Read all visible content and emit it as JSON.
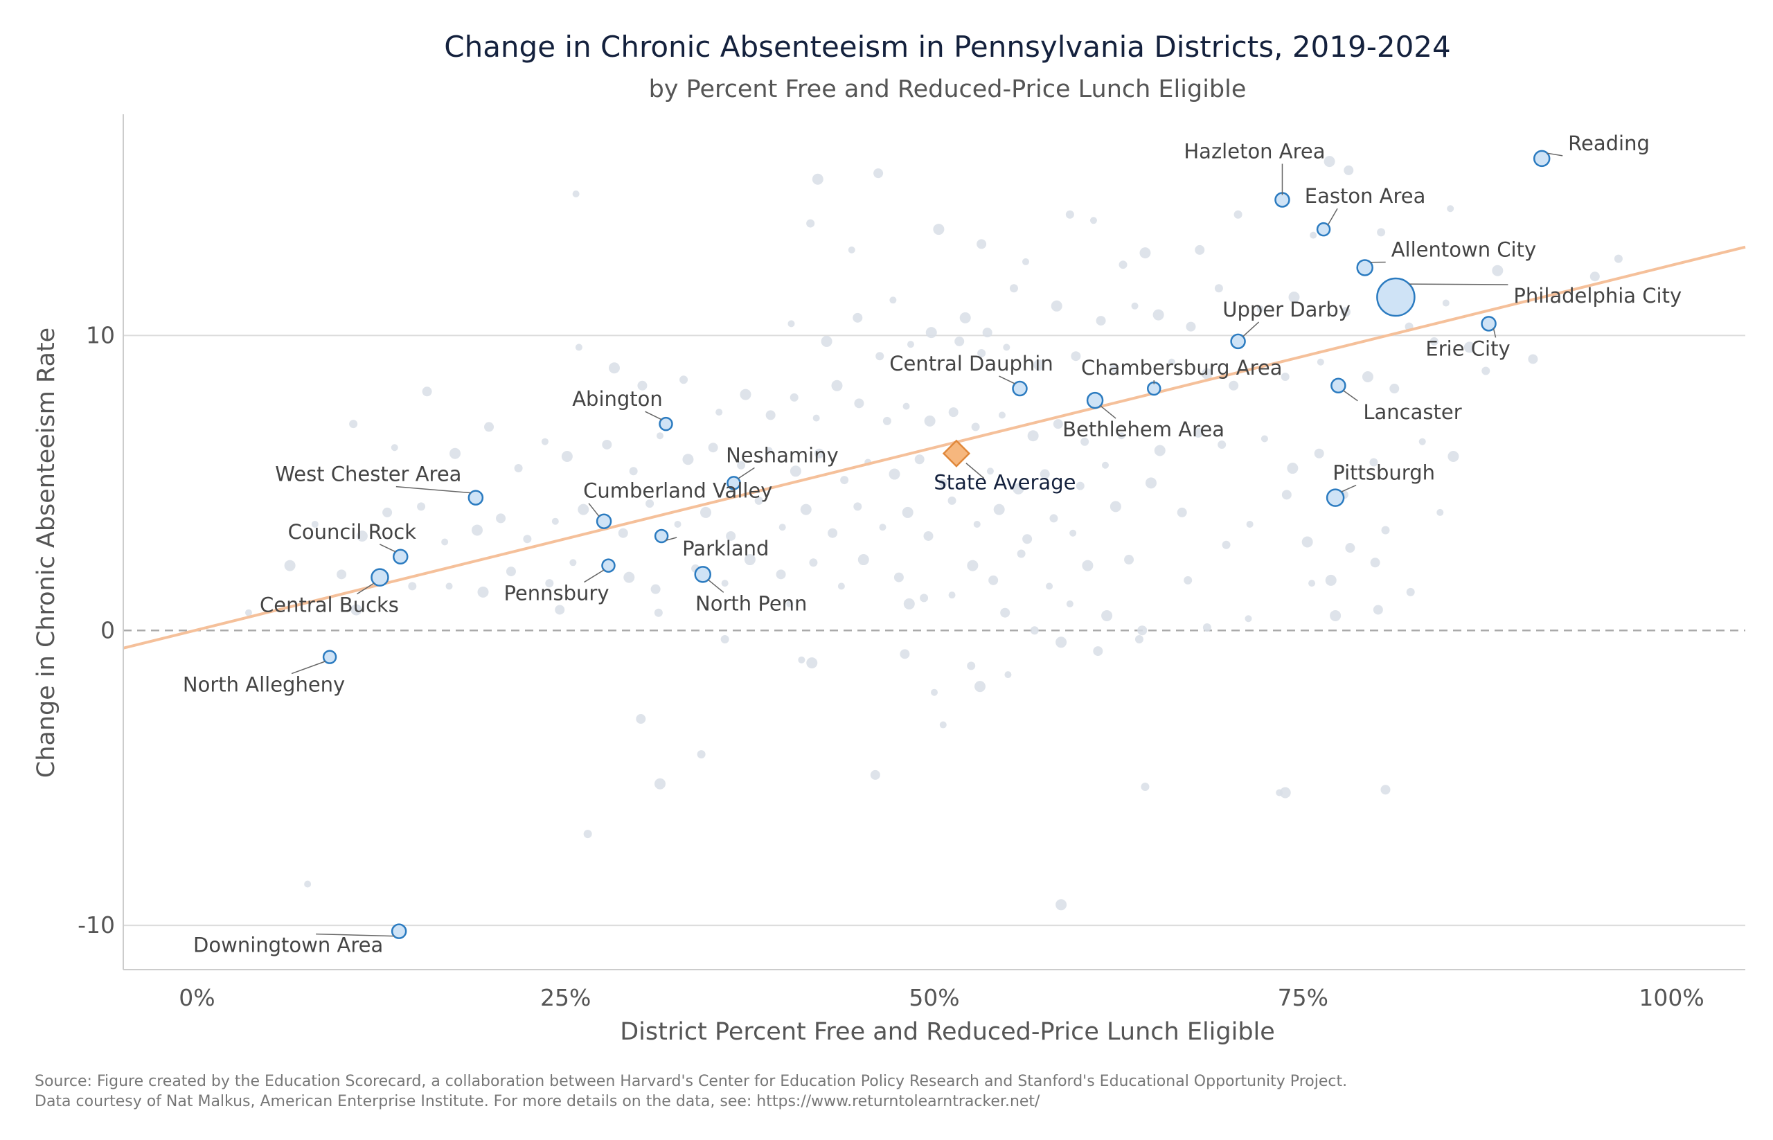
{
  "chart_data": {
    "type": "scatter",
    "title": "Change in Chronic Absenteeism in Pennsylvania Districts, 2019-2024",
    "subtitle": "by Percent Free and Reduced-Price Lunch Eligible",
    "xlabel": "District Percent Free and Reduced-Price Lunch Eligible",
    "ylabel": "Change in Chronic Absenteeism Rate",
    "xlim": [
      -5,
      105
    ],
    "ylim": [
      -11.5,
      17.5
    ],
    "x_ticks": [
      {
        "value": 0,
        "label": "0%"
      },
      {
        "value": 25,
        "label": "25%"
      },
      {
        "value": 50,
        "label": "50%"
      },
      {
        "value": 75,
        "label": "75%"
      },
      {
        "value": 100,
        "label": "100%"
      }
    ],
    "y_ticks": [
      {
        "value": -10,
        "label": "-10"
      },
      {
        "value": 0,
        "label": "0"
      },
      {
        "value": 10,
        "label": "10"
      }
    ],
    "grid": "horizontal",
    "reference_line_y": 0,
    "trend_line": {
      "x": [
        -5,
        105
      ],
      "y": [
        -0.6,
        13.0
      ],
      "color": "#f5c09a"
    },
    "colors": {
      "highlight_fill": "#cfe3f6",
      "highlight_stroke": "#2b7bc0",
      "background_point": "#d8dee6",
      "state_fill": "#f6b77e",
      "state_stroke": "#e0883b",
      "trend": "#f5c09a",
      "grid": "#dcdcdc",
      "zero_line": "#aaaaaa"
    },
    "highlighted": [
      {
        "name": "Reading",
        "x": 91.2,
        "y": 16.0,
        "size": 11
      },
      {
        "name": "Hazleton Area",
        "x": 73.6,
        "y": 14.6,
        "size": 10
      },
      {
        "name": "Easton Area",
        "x": 76.4,
        "y": 13.6,
        "size": 9
      },
      {
        "name": "Allentown City",
        "x": 79.2,
        "y": 12.3,
        "size": 11
      },
      {
        "name": "Philadelphia City",
        "x": 81.3,
        "y": 11.3,
        "size": 27
      },
      {
        "name": "Upper Darby",
        "x": 70.6,
        "y": 9.8,
        "size": 10
      },
      {
        "name": "Erie City",
        "x": 87.6,
        "y": 10.4,
        "size": 10
      },
      {
        "name": "Chambersburg Area",
        "x": 64.9,
        "y": 8.2,
        "size": 9
      },
      {
        "name": "Central Dauphin",
        "x": 55.8,
        "y": 8.2,
        "size": 10
      },
      {
        "name": "Bethlehem Area",
        "x": 60.9,
        "y": 7.8,
        "size": 11
      },
      {
        "name": "Lancaster",
        "x": 77.4,
        "y": 8.3,
        "size": 10
      },
      {
        "name": "Abington",
        "x": 31.8,
        "y": 7.0,
        "size": 9
      },
      {
        "name": "Neshaminy",
        "x": 36.4,
        "y": 5.0,
        "size": 9
      },
      {
        "name": "Pittsburgh",
        "x": 77.2,
        "y": 4.5,
        "size": 12
      },
      {
        "name": "West Chester Area",
        "x": 18.9,
        "y": 4.5,
        "size": 10
      },
      {
        "name": "Cumberland Valley",
        "x": 27.6,
        "y": 3.7,
        "size": 10
      },
      {
        "name": "Parkland",
        "x": 31.5,
        "y": 3.2,
        "size": 9
      },
      {
        "name": "Council Rock",
        "x": 13.8,
        "y": 2.5,
        "size": 10
      },
      {
        "name": "Pennsbury",
        "x": 27.9,
        "y": 2.2,
        "size": 9
      },
      {
        "name": "North Penn",
        "x": 34.3,
        "y": 1.9,
        "size": 11
      },
      {
        "name": "Central Bucks",
        "x": 12.4,
        "y": 1.8,
        "size": 12
      },
      {
        "name": "North Allegheny",
        "x": 9.0,
        "y": -0.9,
        "size": 9
      },
      {
        "name": "Downingtown Area",
        "x": 13.7,
        "y": -10.2,
        "size": 10
      }
    ],
    "state_average": {
      "name": "State Average",
      "x": 51.5,
      "y": 6.0
    },
    "background_points": [
      [
        25.7,
        14.8
      ],
      [
        42.1,
        15.3
      ],
      [
        46.2,
        15.5
      ],
      [
        41.6,
        13.8
      ],
      [
        44.4,
        12.9
      ],
      [
        50.3,
        13.6
      ],
      [
        53.2,
        13.1
      ],
      [
        59.2,
        14.1
      ],
      [
        60.8,
        13.9
      ],
      [
        64.3,
        12.8
      ],
      [
        68.0,
        12.9
      ],
      [
        70.6,
        14.1
      ],
      [
        75.7,
        13.4
      ],
      [
        76.8,
        15.9
      ],
      [
        78.1,
        15.6
      ],
      [
        80.3,
        13.5
      ],
      [
        85.0,
        14.3
      ],
      [
        88.2,
        12.2
      ],
      [
        94.8,
        12.0
      ],
      [
        96.4,
        12.6
      ],
      [
        47.2,
        11.2
      ],
      [
        52.1,
        10.6
      ],
      [
        53.6,
        10.1
      ],
      [
        55.4,
        11.6
      ],
      [
        56.2,
        12.5
      ],
      [
        58.3,
        11.0
      ],
      [
        61.3,
        10.5
      ],
      [
        62.8,
        12.4
      ],
      [
        63.6,
        11.0
      ],
      [
        65.2,
        10.7
      ],
      [
        67.4,
        10.3
      ],
      [
        69.3,
        11.6
      ],
      [
        72.1,
        10.9
      ],
      [
        74.4,
        11.3
      ],
      [
        77.9,
        10.8
      ],
      [
        82.2,
        10.3
      ],
      [
        84.7,
        11.1
      ],
      [
        86.3,
        9.6
      ],
      [
        90.6,
        9.2
      ],
      [
        83.9,
        9.8
      ],
      [
        40.3,
        10.4
      ],
      [
        42.7,
        9.8
      ],
      [
        44.8,
        10.6
      ],
      [
        46.3,
        9.3
      ],
      [
        48.4,
        9.7
      ],
      [
        49.8,
        10.1
      ],
      [
        51.7,
        9.8
      ],
      [
        53.2,
        9.4
      ],
      [
        54.9,
        9.6
      ],
      [
        57.1,
        9.0
      ],
      [
        59.6,
        9.3
      ],
      [
        62.2,
        8.9
      ],
      [
        66.1,
        9.1
      ],
      [
        68.5,
        8.7
      ],
      [
        70.3,
        8.3
      ],
      [
        73.8,
        8.6
      ],
      [
        76.2,
        9.1
      ],
      [
        79.4,
        8.6
      ],
      [
        81.2,
        8.2
      ],
      [
        87.4,
        8.8
      ],
      [
        25.9,
        9.6
      ],
      [
        28.3,
        8.9
      ],
      [
        30.2,
        8.3
      ],
      [
        33.0,
        8.5
      ],
      [
        35.4,
        7.4
      ],
      [
        37.2,
        8.0
      ],
      [
        38.9,
        7.3
      ],
      [
        40.5,
        7.9
      ],
      [
        42.0,
        7.2
      ],
      [
        43.4,
        8.3
      ],
      [
        44.9,
        7.7
      ],
      [
        46.8,
        7.1
      ],
      [
        48.1,
        7.6
      ],
      [
        49.7,
        7.1
      ],
      [
        51.3,
        7.4
      ],
      [
        52.8,
        6.9
      ],
      [
        54.6,
        7.3
      ],
      [
        56.7,
        6.6
      ],
      [
        58.4,
        7.0
      ],
      [
        60.2,
        6.4
      ],
      [
        62.7,
        6.6
      ],
      [
        65.3,
        6.1
      ],
      [
        67.9,
        6.7
      ],
      [
        69.5,
        6.3
      ],
      [
        72.4,
        6.5
      ],
      [
        74.3,
        5.5
      ],
      [
        76.1,
        6.0
      ],
      [
        79.8,
        5.7
      ],
      [
        83.1,
        6.4
      ],
      [
        85.2,
        5.9
      ],
      [
        15.6,
        8.1
      ],
      [
        10.6,
        7.0
      ],
      [
        13.4,
        6.2
      ],
      [
        17.5,
        6.0
      ],
      [
        19.8,
        6.9
      ],
      [
        21.8,
        5.5
      ],
      [
        23.6,
        6.4
      ],
      [
        25.1,
        5.9
      ],
      [
        27.8,
        6.3
      ],
      [
        29.6,
        5.4
      ],
      [
        31.4,
        6.6
      ],
      [
        33.3,
        5.8
      ],
      [
        35.0,
        6.2
      ],
      [
        36.9,
        5.6
      ],
      [
        38.8,
        6.1
      ],
      [
        40.6,
        5.4
      ],
      [
        42.2,
        6.0
      ],
      [
        43.9,
        5.1
      ],
      [
        45.5,
        5.7
      ],
      [
        47.3,
        5.3
      ],
      [
        49.0,
        5.8
      ],
      [
        50.6,
        5.0
      ],
      [
        53.8,
        5.4
      ],
      [
        55.7,
        4.8
      ],
      [
        57.5,
        5.3
      ],
      [
        59.9,
        4.9
      ],
      [
        61.6,
        5.6
      ],
      [
        64.7,
        5.0
      ],
      [
        73.9,
        4.6
      ],
      [
        77.8,
        4.6
      ],
      [
        8.0,
        3.6
      ],
      [
        11.2,
        3.2
      ],
      [
        12.9,
        4.0
      ],
      [
        15.2,
        4.2
      ],
      [
        16.8,
        3.0
      ],
      [
        19.0,
        3.4
      ],
      [
        20.6,
        3.8
      ],
      [
        22.4,
        3.1
      ],
      [
        24.3,
        3.7
      ],
      [
        26.2,
        4.1
      ],
      [
        28.9,
        3.3
      ],
      [
        30.7,
        4.3
      ],
      [
        32.6,
        3.6
      ],
      [
        34.5,
        4.0
      ],
      [
        36.2,
        3.2
      ],
      [
        38.1,
        4.4
      ],
      [
        39.7,
        3.5
      ],
      [
        41.3,
        4.1
      ],
      [
        43.1,
        3.3
      ],
      [
        44.8,
        4.2
      ],
      [
        46.5,
        3.5
      ],
      [
        48.2,
        4.0
      ],
      [
        49.6,
        3.2
      ],
      [
        51.2,
        4.4
      ],
      [
        52.9,
        3.6
      ],
      [
        54.4,
        4.1
      ],
      [
        56.3,
        3.1
      ],
      [
        58.1,
        3.8
      ],
      [
        59.4,
        3.3
      ],
      [
        62.3,
        4.2
      ],
      [
        66.8,
        4.0
      ],
      [
        69.8,
        2.9
      ],
      [
        71.4,
        3.6
      ],
      [
        75.3,
        3.0
      ],
      [
        78.2,
        2.8
      ],
      [
        80.6,
        3.4
      ],
      [
        84.3,
        4.0
      ],
      [
        6.3,
        2.2
      ],
      [
        9.8,
        1.9
      ],
      [
        14.6,
        1.5
      ],
      [
        17.1,
        1.5
      ],
      [
        19.4,
        1.3
      ],
      [
        21.3,
        2.0
      ],
      [
        23.9,
        1.6
      ],
      [
        25.5,
        2.3
      ],
      [
        29.3,
        1.8
      ],
      [
        31.1,
        1.4
      ],
      [
        33.8,
        2.1
      ],
      [
        35.8,
        1.6
      ],
      [
        37.5,
        2.4
      ],
      [
        39.6,
        1.9
      ],
      [
        41.8,
        2.3
      ],
      [
        43.7,
        1.5
      ],
      [
        45.2,
        2.4
      ],
      [
        47.6,
        1.8
      ],
      [
        49.3,
        1.1
      ],
      [
        51.2,
        1.2
      ],
      [
        52.6,
        2.2
      ],
      [
        54.0,
        1.7
      ],
      [
        55.9,
        2.6
      ],
      [
        57.8,
        1.5
      ],
      [
        60.4,
        2.2
      ],
      [
        63.2,
        2.4
      ],
      [
        67.2,
        1.7
      ],
      [
        75.6,
        1.6
      ],
      [
        76.9,
        1.7
      ],
      [
        79.9,
        2.3
      ],
      [
        82.3,
        1.3
      ],
      [
        3.5,
        0.6
      ],
      [
        10.8,
        0.7
      ],
      [
        24.6,
        0.7
      ],
      [
        31.3,
        0.6
      ],
      [
        40.2,
        0.9
      ],
      [
        48.3,
        0.9
      ],
      [
        54.8,
        0.6
      ],
      [
        56.8,
        0.0
      ],
      [
        59.2,
        0.9
      ],
      [
        61.7,
        0.5
      ],
      [
        64.1,
        0.0
      ],
      [
        68.5,
        0.1
      ],
      [
        71.3,
        0.4
      ],
      [
        77.2,
        0.5
      ],
      [
        80.1,
        0.7
      ],
      [
        35.8,
        -0.3
      ],
      [
        41.0,
        -1.0
      ],
      [
        41.7,
        -1.1
      ],
      [
        48.0,
        -0.8
      ],
      [
        52.5,
        -1.2
      ],
      [
        55.0,
        -1.5
      ],
      [
        58.6,
        -0.4
      ],
      [
        61.1,
        -0.7
      ],
      [
        63.9,
        -0.3
      ],
      [
        50.0,
        -2.1
      ],
      [
        53.1,
        -1.9
      ],
      [
        30.1,
        -3.0
      ],
      [
        34.2,
        -4.2
      ],
      [
        50.6,
        -3.2
      ],
      [
        31.4,
        -5.2
      ],
      [
        46.0,
        -4.9
      ],
      [
        64.3,
        -5.3
      ],
      [
        73.4,
        -5.5
      ],
      [
        73.8,
        -5.5
      ],
      [
        80.6,
        -5.4
      ],
      [
        26.5,
        -6.9
      ],
      [
        7.5,
        -8.6
      ],
      [
        58.6,
        -9.3
      ]
    ]
  },
  "source": {
    "line1": "Source: Figure created by the Education Scorecard, a collaboration between Harvard's Center for Education Policy Research and Stanford's Educational Opportunity Project.",
    "line2": "Data courtesy of Nat Malkus, American Enterprise Institute. For more details on the data, see: https://www.returntolearntracker.net/"
  }
}
